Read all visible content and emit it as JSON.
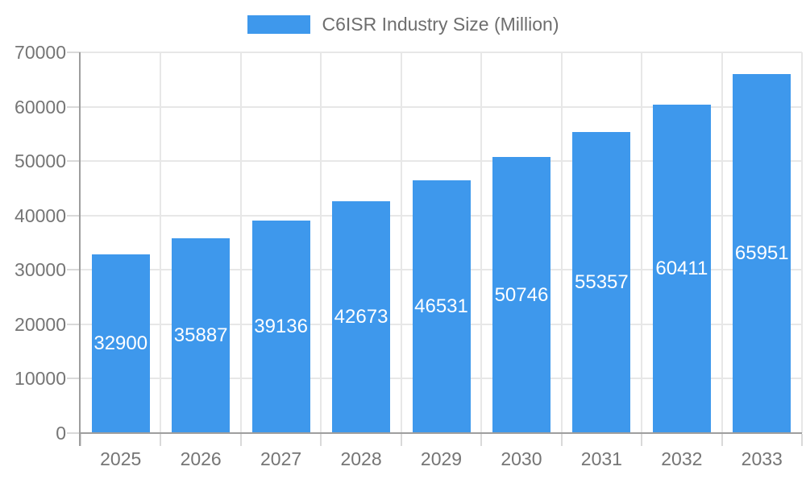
{
  "chart_data": {
    "type": "bar",
    "legend": "C6ISR Industry Size (Million)",
    "categories": [
      "2025",
      "2026",
      "2027",
      "2028",
      "2029",
      "2030",
      "2031",
      "2032",
      "2033"
    ],
    "values": [
      32900,
      35887,
      39136,
      42673,
      46531,
      50746,
      55357,
      60411,
      65951
    ],
    "ylim": [
      0,
      70000
    ],
    "ytick_step": 10000,
    "ytick_labels": [
      "0",
      "10000",
      "20000",
      "30000",
      "40000",
      "50000",
      "60000",
      "70000"
    ],
    "grid": "both",
    "legend_position": "top-center",
    "bar_color": "#3E98EC",
    "bar_label_color": "#FFFFFF",
    "axis_text_color": "#757575",
    "legend_text_color": "#6E6E6E",
    "axis_line_color": "#9E9E9E",
    "gridline_color": "#E7E7E7",
    "tick_color": "#D9D9D9",
    "background": "#FFFFFF"
  }
}
